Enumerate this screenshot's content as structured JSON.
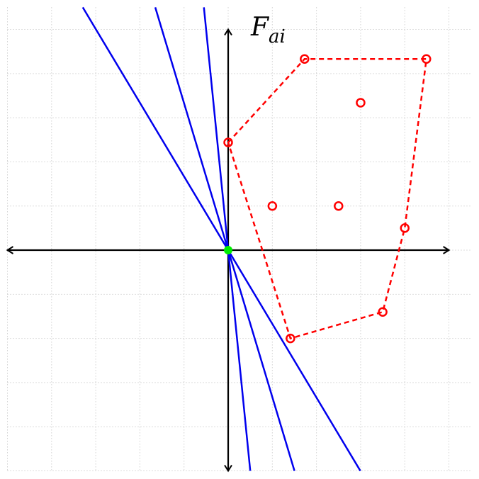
{
  "chart_data": {
    "type": "scatter",
    "ylabel": {
      "base": "F",
      "subscript": "ai"
    },
    "xlim": [
      -5,
      5.5
    ],
    "ylim": [
      -5,
      5.5
    ],
    "xticks": [
      -5,
      -4,
      -3,
      -2,
      -1,
      0,
      1,
      2,
      3,
      4,
      5
    ],
    "yticks": [
      -5,
      -4,
      -3,
      -2,
      -1,
      0,
      1,
      2,
      3,
      4,
      5
    ],
    "grid": true,
    "series": [
      {
        "color": "#ff0000",
        "style": "markers",
        "x": [
          1.73,
          4.49,
          3.0,
          0,
          1.0,
          2.5,
          4.0,
          3.5,
          1.41
        ],
        "values": [
          4.33,
          4.33,
          3.34,
          2.44,
          1.0,
          1.0,
          0.5,
          -1.4,
          -2.0
        ]
      },
      {
        "color": "#ff0000",
        "style": "dashed-closed",
        "x": [
          0,
          1.73,
          4.49,
          4.0,
          3.5,
          1.41
        ],
        "values": [
          2.44,
          4.33,
          4.33,
          0.5,
          -1.4,
          -2.0
        ]
      }
    ],
    "lines": {
      "color": "#0000ee",
      "slopes": [
        -1.67,
        -3.33,
        -10
      ]
    },
    "origin_point": {
      "color": "#00ee00",
      "x": 0,
      "y": 0
    }
  }
}
